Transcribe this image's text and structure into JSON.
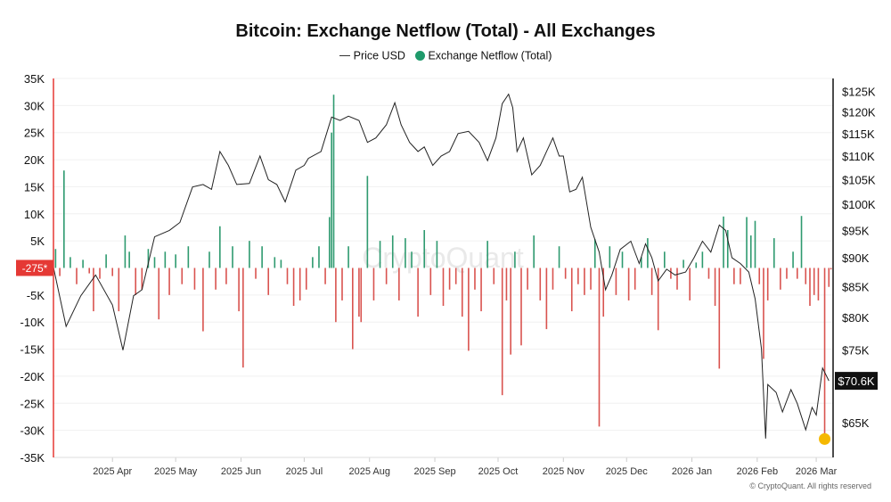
{
  "chart_data": {
    "type": "bar+line",
    "title": "Bitcoin: Exchange Netflow (Total) - All Exchanges",
    "legend": [
      {
        "name": "Price USD",
        "marker": "line",
        "color": "#222222"
      },
      {
        "name": "Exchange Netflow (Total)",
        "marker": "dot",
        "color": "#1f9a6b"
      }
    ],
    "legend_placement": "top-center",
    "grid": true,
    "left_axis": {
      "ylim": [
        -35000,
        35000
      ],
      "ticks": [
        "35K",
        "30K",
        "25K",
        "20K",
        "15K",
        "10K",
        "5K",
        "-5K",
        "-10K",
        "-15K",
        "-20K",
        "-25K",
        "-30K",
        "-35K"
      ],
      "tick_values": [
        35,
        30,
        25,
        20,
        15,
        10,
        5,
        -5,
        -10,
        -15,
        -20,
        -25,
        -30,
        -35
      ],
      "unit": "K"
    },
    "right_axis": {
      "scale": "log",
      "ylim": [
        60.7,
        128.2
      ],
      "unit": "$K",
      "ticks": [
        "$125K",
        "$120K",
        "$115K",
        "$110K",
        "$105K",
        "$100K",
        "$95K",
        "$90K",
        "$85K",
        "$80K",
        "$75K",
        "$65K"
      ],
      "tick_values": [
        125,
        120,
        115,
        110,
        105,
        100,
        95,
        90,
        85,
        80,
        75,
        65
      ]
    },
    "x_axis": {
      "range": [
        "2025-03-04",
        "2026-03-09"
      ],
      "ticks": [
        {
          "label": "2025 Apr",
          "date": "2025-04-01"
        },
        {
          "label": "2025 May",
          "date": "2025-05-01"
        },
        {
          "label": "2025 Jun",
          "date": "2025-06-01"
        },
        {
          "label": "2025 Jul",
          "date": "2025-07-01"
        },
        {
          "label": "2025 Aug",
          "date": "2025-08-01"
        },
        {
          "label": "2025 Sep",
          "date": "2025-09-01"
        },
        {
          "label": "2025 Oct",
          "date": "2025-10-01"
        },
        {
          "label": "2025 Nov",
          "date": "2025-11-01"
        },
        {
          "label": "2025 Dec",
          "date": "2025-12-01"
        },
        {
          "label": "2026 Jan",
          "date": "2026-01-01"
        },
        {
          "label": "2026 Feb",
          "date": "2026-02-01"
        },
        {
          "label": "2026 Mar",
          "date": "2026-03-01"
        }
      ]
    },
    "colors": {
      "inflow": "#2e9a6f",
      "outflow": "#d9534f",
      "price": "#222222",
      "highlight": "#f5b800",
      "left_axis": "#e53935"
    },
    "current_netflow_label": "-275*",
    "current_price_label": "$70.6K",
    "highlight_point": {
      "date": "2026-03-05",
      "netflow_k": -31.6
    },
    "netflow_k": [
      [
        "2025-03-05",
        3.5
      ],
      [
        "2025-03-07",
        -1.5
      ],
      [
        "2025-03-09",
        18
      ],
      [
        "2025-03-12",
        2
      ],
      [
        "2025-03-15",
        -3
      ],
      [
        "2025-03-18",
        1.5
      ],
      [
        "2025-03-21",
        -1
      ],
      [
        "2025-03-23",
        -8
      ],
      [
        "2025-03-26",
        -2
      ],
      [
        "2025-03-29",
        2.5
      ],
      [
        "2025-04-01",
        -1.5
      ],
      [
        "2025-04-04",
        -8
      ],
      [
        "2025-04-07",
        6
      ],
      [
        "2025-04-09",
        3
      ],
      [
        "2025-04-12",
        -5
      ],
      [
        "2025-04-15",
        -4
      ],
      [
        "2025-04-18",
        3.5
      ],
      [
        "2025-04-21",
        2
      ],
      [
        "2025-04-23",
        -9.5
      ],
      [
        "2025-04-26",
        3
      ],
      [
        "2025-04-28",
        -5
      ],
      [
        "2025-05-01",
        2.5
      ],
      [
        "2025-05-04",
        -3
      ],
      [
        "2025-05-07",
        4
      ],
      [
        "2025-05-10",
        -4
      ],
      [
        "2025-05-14",
        -11.7
      ],
      [
        "2025-05-17",
        3
      ],
      [
        "2025-05-20",
        -4
      ],
      [
        "2025-05-22",
        7.7
      ],
      [
        "2025-05-25",
        -3
      ],
      [
        "2025-05-28",
        4
      ],
      [
        "2025-05-31",
        -8
      ],
      [
        "2025-06-02",
        -18.4
      ],
      [
        "2025-06-05",
        5
      ],
      [
        "2025-06-08",
        -2
      ],
      [
        "2025-06-11",
        4
      ],
      [
        "2025-06-14",
        -5
      ],
      [
        "2025-06-17",
        2
      ],
      [
        "2025-06-20",
        1.5
      ],
      [
        "2025-06-23",
        -3
      ],
      [
        "2025-06-26",
        -7
      ],
      [
        "2025-06-29",
        -6
      ],
      [
        "2025-07-02",
        -4
      ],
      [
        "2025-07-05",
        2
      ],
      [
        "2025-07-08",
        4
      ],
      [
        "2025-07-11",
        -3
      ],
      [
        "2025-07-13",
        9.4
      ],
      [
        "2025-07-14",
        25
      ],
      [
        "2025-07-15",
        32
      ],
      [
        "2025-07-16",
        -10
      ],
      [
        "2025-07-19",
        -6
      ],
      [
        "2025-07-22",
        4
      ],
      [
        "2025-07-24",
        -15
      ],
      [
        "2025-07-27",
        -9
      ],
      [
        "2025-07-28",
        -10
      ],
      [
        "2025-07-31",
        17
      ],
      [
        "2025-08-03",
        -6
      ],
      [
        "2025-08-06",
        5
      ],
      [
        "2025-08-09",
        -3
      ],
      [
        "2025-08-12",
        6
      ],
      [
        "2025-08-15",
        -6
      ],
      [
        "2025-08-18",
        5.5
      ],
      [
        "2025-08-21",
        3
      ],
      [
        "2025-08-24",
        -9
      ],
      [
        "2025-08-27",
        7
      ],
      [
        "2025-08-30",
        -5
      ],
      [
        "2025-09-02",
        5
      ],
      [
        "2025-09-05",
        -7
      ],
      [
        "2025-09-08",
        -4
      ],
      [
        "2025-09-11",
        -3
      ],
      [
        "2025-09-14",
        -9
      ],
      [
        "2025-09-17",
        -15.3
      ],
      [
        "2025-09-20",
        -4
      ],
      [
        "2025-09-23",
        -8
      ],
      [
        "2025-09-26",
        5
      ],
      [
        "2025-09-29",
        -3
      ],
      [
        "2025-10-03",
        -23.5
      ],
      [
        "2025-10-05",
        -6
      ],
      [
        "2025-10-07",
        -16
      ],
      [
        "2025-10-09",
        3
      ],
      [
        "2025-10-12",
        -14.3
      ],
      [
        "2025-10-15",
        -4
      ],
      [
        "2025-10-18",
        6
      ],
      [
        "2025-10-21",
        -6
      ],
      [
        "2025-10-24",
        -11.3
      ],
      [
        "2025-10-27",
        -4
      ],
      [
        "2025-10-30",
        4
      ],
      [
        "2025-11-02",
        -2
      ],
      [
        "2025-11-05",
        -8
      ],
      [
        "2025-11-08",
        -3
      ],
      [
        "2025-11-11",
        -5
      ],
      [
        "2025-11-14",
        -4
      ],
      [
        "2025-11-16",
        5.3
      ],
      [
        "2025-11-18",
        -29.3
      ],
      [
        "2025-11-20",
        -9
      ],
      [
        "2025-11-23",
        4
      ],
      [
        "2025-11-26",
        -5
      ],
      [
        "2025-11-29",
        3
      ],
      [
        "2025-12-02",
        -6
      ],
      [
        "2025-12-05",
        -4
      ],
      [
        "2025-12-08",
        2
      ],
      [
        "2025-12-11",
        5.5
      ],
      [
        "2025-12-13",
        -5
      ],
      [
        "2025-12-16",
        -11.5
      ],
      [
        "2025-12-19",
        3
      ],
      [
        "2025-12-22",
        -2
      ],
      [
        "2025-12-25",
        -4
      ],
      [
        "2025-12-28",
        1.5
      ],
      [
        "2025-12-31",
        -6
      ],
      [
        "2026-01-03",
        1
      ],
      [
        "2026-01-06",
        3
      ],
      [
        "2026-01-09",
        -2
      ],
      [
        "2026-01-12",
        -7
      ],
      [
        "2026-01-14",
        -18.6
      ],
      [
        "2026-01-16",
        9.5
      ],
      [
        "2026-01-18",
        7
      ],
      [
        "2026-01-21",
        -3
      ],
      [
        "2026-01-24",
        -3
      ],
      [
        "2026-01-27",
        9.4
      ],
      [
        "2026-01-29",
        6
      ],
      [
        "2026-01-31",
        8.7
      ],
      [
        "2026-02-02",
        -3
      ],
      [
        "2026-02-04",
        -16.8
      ],
      [
        "2026-02-06",
        -6
      ],
      [
        "2026-02-09",
        5.5
      ],
      [
        "2026-02-12",
        -4
      ],
      [
        "2026-02-15",
        -2
      ],
      [
        "2026-02-18",
        3
      ],
      [
        "2026-02-20",
        -2
      ],
      [
        "2026-02-22",
        9.6
      ],
      [
        "2026-02-24",
        -3
      ],
      [
        "2026-02-26",
        -7
      ],
      [
        "2026-02-28",
        -5
      ],
      [
        "2026-03-02",
        -6
      ],
      [
        "2026-03-05",
        -31.6
      ],
      [
        "2026-03-07",
        -3.5
      ],
      [
        "2026-03-08",
        -0.275
      ]
    ],
    "price_usd_k": [
      [
        "2025-03-04",
        88.3
      ],
      [
        "2025-03-10",
        78.6
      ],
      [
        "2025-03-17",
        83.5
      ],
      [
        "2025-03-24",
        87
      ],
      [
        "2025-04-01",
        82
      ],
      [
        "2025-04-06",
        75
      ],
      [
        "2025-04-11",
        83.5
      ],
      [
        "2025-04-15",
        84.5
      ],
      [
        "2025-04-21",
        93.8
      ],
      [
        "2025-04-28",
        95
      ],
      [
        "2025-05-03",
        96.5
      ],
      [
        "2025-05-09",
        103.5
      ],
      [
        "2025-05-14",
        104
      ],
      [
        "2025-05-18",
        103
      ],
      [
        "2025-05-22",
        111
      ],
      [
        "2025-05-26",
        108
      ],
      [
        "2025-05-30",
        104
      ],
      [
        "2025-06-05",
        104.2
      ],
      [
        "2025-06-10",
        110
      ],
      [
        "2025-06-14",
        105
      ],
      [
        "2025-06-18",
        104
      ],
      [
        "2025-06-22",
        100.5
      ],
      [
        "2025-06-27",
        107
      ],
      [
        "2025-07-01",
        108
      ],
      [
        "2025-07-03",
        109.5
      ],
      [
        "2025-07-09",
        111
      ],
      [
        "2025-07-14",
        118.8
      ],
      [
        "2025-07-18",
        118
      ],
      [
        "2025-07-22",
        119
      ],
      [
        "2025-07-27",
        118
      ],
      [
        "2025-07-31",
        113
      ],
      [
        "2025-08-04",
        114
      ],
      [
        "2025-08-09",
        117
      ],
      [
        "2025-08-13",
        122.2
      ],
      [
        "2025-08-16",
        117
      ],
      [
        "2025-08-20",
        113
      ],
      [
        "2025-08-24",
        111
      ],
      [
        "2025-08-27",
        112
      ],
      [
        "2025-08-31",
        108
      ],
      [
        "2025-09-04",
        110
      ],
      [
        "2025-09-08",
        111
      ],
      [
        "2025-09-12",
        115
      ],
      [
        "2025-09-17",
        115.5
      ],
      [
        "2025-09-22",
        113
      ],
      [
        "2025-09-26",
        109
      ],
      [
        "2025-09-30",
        114
      ],
      [
        "2025-10-03",
        122
      ],
      [
        "2025-10-06",
        124.3
      ],
      [
        "2025-10-08",
        121
      ],
      [
        "2025-10-10",
        111
      ],
      [
        "2025-10-13",
        114
      ],
      [
        "2025-10-17",
        106
      ],
      [
        "2025-10-21",
        108
      ],
      [
        "2025-10-24",
        111
      ],
      [
        "2025-10-27",
        114
      ],
      [
        "2025-10-30",
        110
      ],
      [
        "2025-11-01",
        110
      ],
      [
        "2025-11-04",
        102.5
      ],
      [
        "2025-11-07",
        103
      ],
      [
        "2025-11-10",
        105.5
      ],
      [
        "2025-11-14",
        95.6
      ],
      [
        "2025-11-18",
        91
      ],
      [
        "2025-11-21",
        84.5
      ],
      [
        "2025-11-24",
        87
      ],
      [
        "2025-11-28",
        91.5
      ],
      [
        "2025-12-03",
        93
      ],
      [
        "2025-12-07",
        89
      ],
      [
        "2025-12-10",
        92.5
      ],
      [
        "2025-12-13",
        90
      ],
      [
        "2025-12-16",
        86
      ],
      [
        "2025-12-20",
        88
      ],
      [
        "2025-12-24",
        87
      ],
      [
        "2025-12-29",
        87.5
      ],
      [
        "2026-01-02",
        90
      ],
      [
        "2026-01-06",
        93
      ],
      [
        "2026-01-10",
        91
      ],
      [
        "2026-01-14",
        96
      ],
      [
        "2026-01-17",
        95
      ],
      [
        "2026-01-20",
        90
      ],
      [
        "2026-01-24",
        89
      ],
      [
        "2026-01-28",
        87.5
      ],
      [
        "2026-01-31",
        83
      ],
      [
        "2026-02-03",
        75.2
      ],
      [
        "2026-02-05",
        63
      ],
      [
        "2026-02-06",
        70.1
      ],
      [
        "2026-02-10",
        69
      ],
      [
        "2026-02-13",
        66.4
      ],
      [
        "2026-02-17",
        69.4
      ],
      [
        "2026-02-20",
        67.5
      ],
      [
        "2026-02-24",
        64.1
      ],
      [
        "2026-02-27",
        67
      ],
      [
        "2026-03-01",
        66
      ],
      [
        "2026-03-04",
        72.4
      ],
      [
        "2026-03-07",
        70.6
      ]
    ]
  },
  "watermark": "CryptoQuant",
  "footer": "© CryptoQuant. All rights reserved"
}
